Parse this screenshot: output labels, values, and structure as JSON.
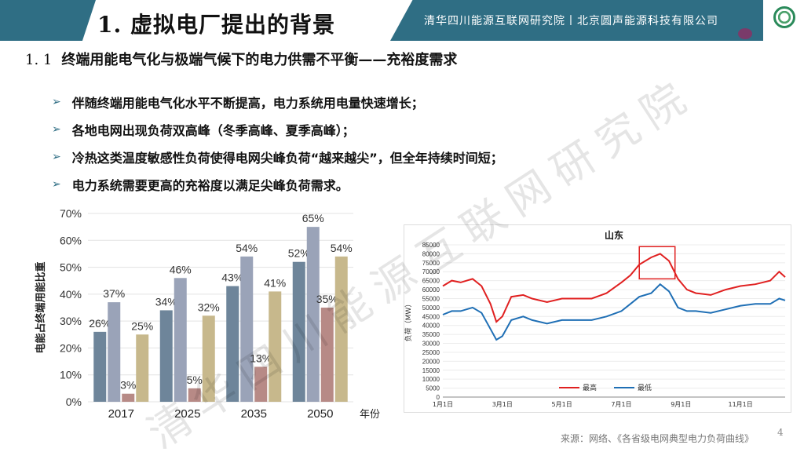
{
  "header": {
    "title": "1. 虚拟电厂提出的背景",
    "org": "清华四川能源互联网研究院丨北京圆声能源科技有限公司"
  },
  "subtitle": {
    "number": "1. 1",
    "text": "终端用能电气化与极端气候下的电力供需不平衡——充裕度需求"
  },
  "bullets": [
    "伴随终端用能电气化水平不断提高，电力系统用电量快速增长；",
    "各地电网出现负荷双高峰（冬季高峰、夏季高峰）；",
    "冷热这类温度敏感性负荷使得电网尖峰负荷“越来越尖”，但全年持续时间短；",
    "电力系统需要更高的充裕度以满足尖峰负荷需求。"
  ],
  "watermark": "清华四川能源互联网研究院",
  "colors": {
    "accent": "#2f6e84",
    "red": "#e02020",
    "blue": "#1f6fb5"
  },
  "chart_data": [
    {
      "type": "bar",
      "ylabel": "电能占终端用能比重",
      "xlabel": "年份",
      "ylim": [
        0,
        70
      ],
      "yticks": [
        "0%",
        "10%",
        "20%",
        "30%",
        "40%",
        "50%",
        "60%",
        "70%"
      ],
      "categories": [
        "2017",
        "2025",
        "2035",
        "2050"
      ],
      "series": [
        {
          "color": "#6e859a",
          "values": [
            26,
            34,
            43,
            52
          ],
          "labels": [
            "26%",
            "34%",
            "43%",
            "52%"
          ]
        },
        {
          "color": "#9aa3b8",
          "values": [
            37,
            46,
            54,
            65
          ],
          "labels": [
            "37%",
            "46%",
            "54%",
            "65%"
          ]
        },
        {
          "color": "#b78a86",
          "values": [
            3,
            5,
            13,
            35
          ],
          "labels": [
            "3%",
            "5%",
            "13%",
            "35%"
          ]
        },
        {
          "color": "#c7b88c",
          "values": [
            25,
            32,
            41,
            54
          ],
          "labels": [
            "25%",
            "32%",
            "41%",
            "54%"
          ]
        }
      ],
      "grid": true
    },
    {
      "type": "line",
      "title": "山东",
      "ylabel": "负荷（MW）",
      "ylim": [
        0,
        85000
      ],
      "yticks": [
        "0",
        "5000",
        "10000",
        "15000",
        "20000",
        "25000",
        "30000",
        "35000",
        "40000",
        "45000",
        "50000",
        "55000",
        "60000",
        "65000",
        "70000",
        "75000",
        "80000",
        "85000"
      ],
      "xticks": [
        "1月1日",
        "3月1日",
        "5月1日",
        "7月1日",
        "9月1日",
        "11月1日"
      ],
      "x_months": [
        1,
        3,
        5,
        7,
        9,
        11
      ],
      "legend_position": "bottom-center",
      "series": [
        {
          "name": "最高",
          "color": "#e02020",
          "points": [
            [
              1,
              62000
            ],
            [
              1.3,
              65000
            ],
            [
              1.6,
              64000
            ],
            [
              2,
              66000
            ],
            [
              2.3,
              62000
            ],
            [
              2.6,
              52000
            ],
            [
              2.8,
              42000
            ],
            [
              3,
              45000
            ],
            [
              3.3,
              56000
            ],
            [
              3.7,
              57000
            ],
            [
              4,
              55000
            ],
            [
              4.5,
              53000
            ],
            [
              5,
              55000
            ],
            [
              5.5,
              55000
            ],
            [
              6,
              55000
            ],
            [
              6.5,
              58000
            ],
            [
              7,
              64000
            ],
            [
              7.3,
              68000
            ],
            [
              7.6,
              74000
            ],
            [
              8,
              78000
            ],
            [
              8.3,
              80000
            ],
            [
              8.6,
              76000
            ],
            [
              8.9,
              66000
            ],
            [
              9.2,
              60000
            ],
            [
              9.5,
              58000
            ],
            [
              10,
              57000
            ],
            [
              10.5,
              60000
            ],
            [
              11,
              62000
            ],
            [
              11.5,
              63000
            ],
            [
              12,
              65000
            ],
            [
              12.3,
              70000
            ],
            [
              12.5,
              67000
            ]
          ]
        },
        {
          "name": "最低",
          "color": "#1f6fb5",
          "points": [
            [
              1,
              46000
            ],
            [
              1.3,
              48000
            ],
            [
              1.6,
              48000
            ],
            [
              2,
              50000
            ],
            [
              2.3,
              47000
            ],
            [
              2.6,
              38000
            ],
            [
              2.8,
              32000
            ],
            [
              3,
              34000
            ],
            [
              3.3,
              43000
            ],
            [
              3.7,
              45000
            ],
            [
              4,
              43000
            ],
            [
              4.5,
              41000
            ],
            [
              5,
              43000
            ],
            [
              5.5,
              43000
            ],
            [
              6,
              43000
            ],
            [
              6.5,
              45000
            ],
            [
              7,
              48000
            ],
            [
              7.3,
              52000
            ],
            [
              7.6,
              56000
            ],
            [
              8,
              58000
            ],
            [
              8.3,
              63000
            ],
            [
              8.6,
              59000
            ],
            [
              8.9,
              50000
            ],
            [
              9.2,
              48000
            ],
            [
              9.5,
              48000
            ],
            [
              10,
              47000
            ],
            [
              10.5,
              49000
            ],
            [
              11,
              51000
            ],
            [
              11.5,
              52000
            ],
            [
              12,
              52000
            ],
            [
              12.3,
              55000
            ],
            [
              12.5,
              54000
            ]
          ]
        }
      ],
      "highlight_box": {
        "x_from": 7.6,
        "x_to": 8.8,
        "y_from": 66000,
        "y_to": 84000
      },
      "grid": true
    }
  ],
  "source": "来源：网络、《各省级电网典型电力负荷曲线》",
  "page_number": "4"
}
